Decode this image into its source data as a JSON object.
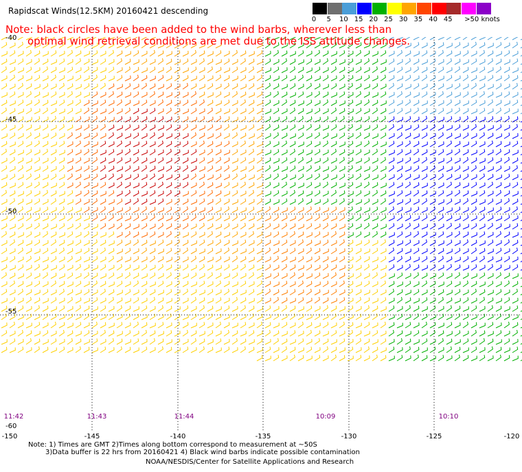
{
  "title": "Rapidscat Winds(12.5KM) 20160421 descending",
  "notes": [
    "Note: black circles have been added to the wind barbs, wherever less than",
    "optimal wind retrieval conditions are met due to the ISS attitude changes."
  ],
  "scale": {
    "labels": [
      "0",
      "5",
      "10",
      "15",
      "20",
      "25",
      "30",
      "35",
      "40",
      "45",
      ">50 knots"
    ],
    "colors": [
      "#000000",
      "#6e6e6e",
      "#4a9ed8",
      "#0000ff",
      "#00b000",
      "#ffff00",
      "#ffa500",
      "#ff4500",
      "#ff0000",
      "#a52a2a",
      "#ff00ff",
      "#8b00c8"
    ]
  },
  "map": {
    "lat_labels": [
      "-40",
      "-45",
      "-50",
      "-55",
      "-60"
    ],
    "lon_labels": [
      "-150",
      "-145",
      "-140",
      "-135",
      "-130",
      "-125",
      "-120"
    ],
    "time_labels": [
      "11:42",
      "11:43",
      "11:44",
      "10:09",
      "10:10"
    ]
  },
  "footer": {
    "line1": "Note: 1) Times are GMT 2)Times along bottom correspond to measurement at ~50S",
    "line2": "3)Data buffer is 22 hrs from 20160421 4) Black wind barbs indicate possible contamination",
    "credit": "NOAA/NESDIS/Center for Satellite Applications and Research"
  }
}
